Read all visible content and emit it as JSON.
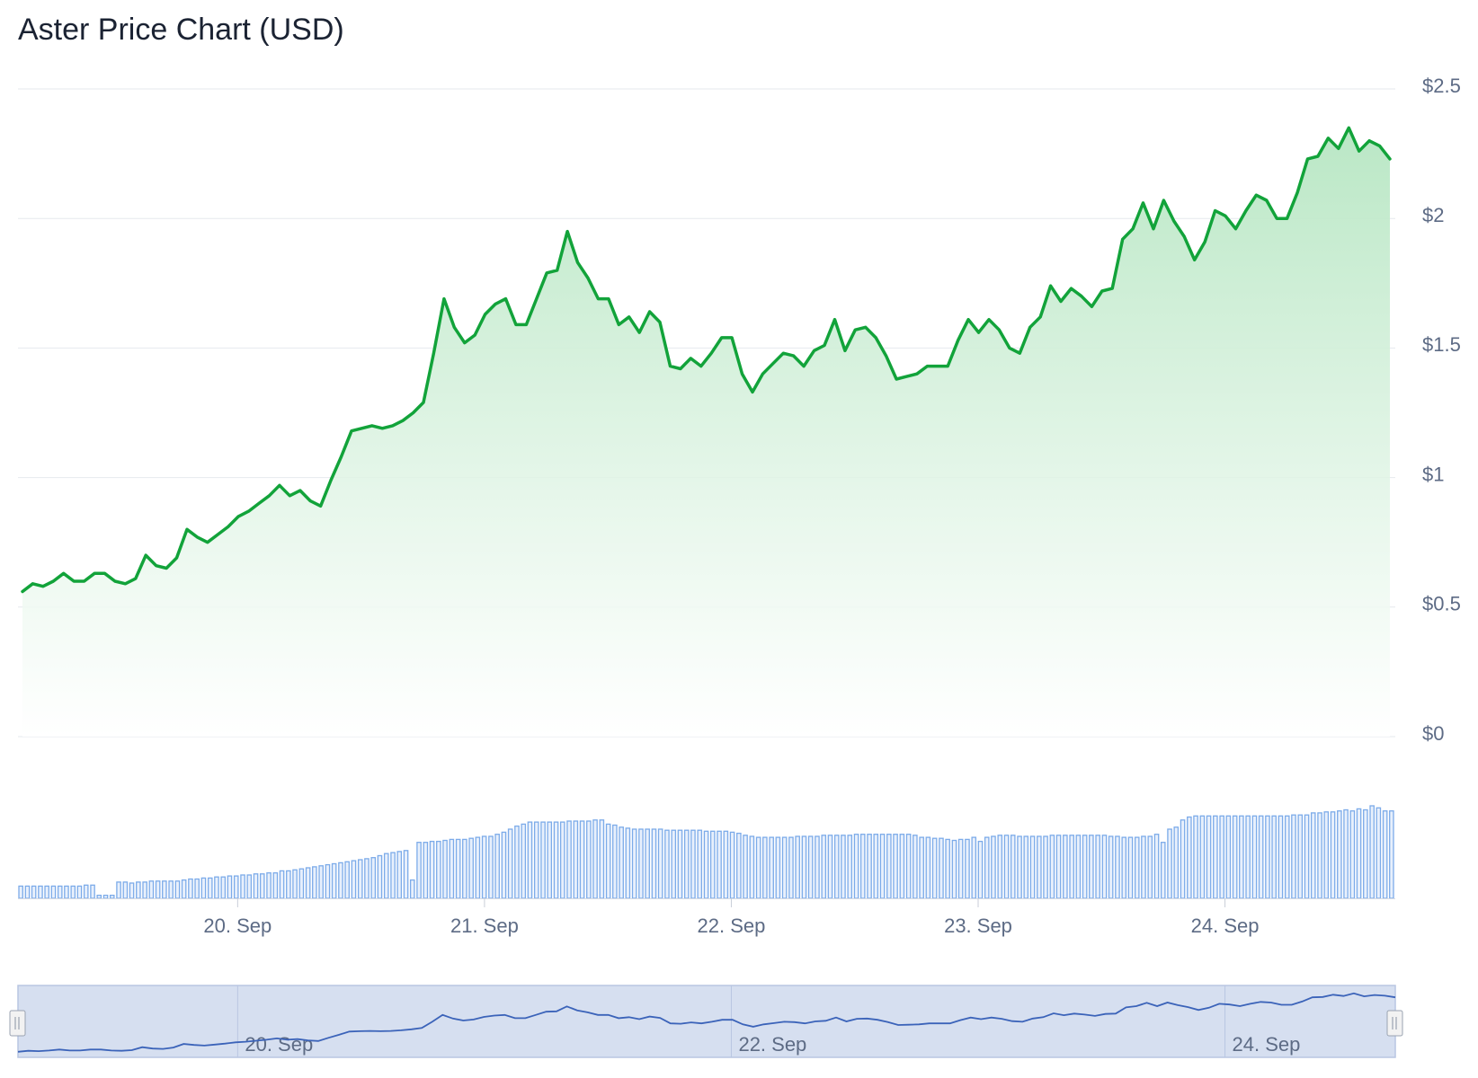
{
  "title": "Aster Price Chart (USD)",
  "colors": {
    "price_line": "#12a33a",
    "area_top": "#b6e6c2",
    "area_bottom": "#ffffff",
    "volume_bar": "#7cabe9",
    "grid": "#e6e9ee",
    "navigator_fill": "#d6dff0",
    "navigator_line": "#3b63b9"
  },
  "chart_data": {
    "type": "area",
    "title": "Aster Price Chart (USD)",
    "xlabel": "",
    "ylabel": "",
    "ylim": [
      0,
      2.5
    ],
    "y_ticks": [
      "$0",
      "$0.5",
      "$1",
      "$1.5",
      "$2",
      "$2.5"
    ],
    "x_tick_labels": [
      "20. Sep",
      "21. Sep",
      "22. Sep",
      "23. Sep",
      "24. Sep"
    ],
    "x_tick_days": [
      1,
      2,
      3,
      4,
      5
    ],
    "x_start_day": 0.11,
    "x_end_day": 5.69,
    "grid": true,
    "legend": "none",
    "series": [
      {
        "kind": "price",
        "x_days": "evenly spaced from 19 Sep ~02:40 to 24 Sep ~16:30",
        "values": [
          0.56,
          0.59,
          0.58,
          0.6,
          0.63,
          0.6,
          0.6,
          0.63,
          0.63,
          0.6,
          0.59,
          0.61,
          0.7,
          0.66,
          0.65,
          0.69,
          0.8,
          0.77,
          0.75,
          0.78,
          0.81,
          0.85,
          0.87,
          0.9,
          0.93,
          0.97,
          0.93,
          0.95,
          0.91,
          0.89,
          0.99,
          1.08,
          1.18,
          1.19,
          1.2,
          1.19,
          1.2,
          1.22,
          1.25,
          1.29,
          1.48,
          1.69,
          1.58,
          1.52,
          1.55,
          1.63,
          1.67,
          1.69,
          1.59,
          1.59,
          1.69,
          1.79,
          1.8,
          1.95,
          1.83,
          1.77,
          1.69,
          1.69,
          1.59,
          1.62,
          1.56,
          1.64,
          1.6,
          1.43,
          1.42,
          1.46,
          1.43,
          1.48,
          1.54,
          1.54,
          1.4,
          1.33,
          1.4,
          1.44,
          1.48,
          1.47,
          1.43,
          1.49,
          1.51,
          1.61,
          1.49,
          1.57,
          1.58,
          1.54,
          1.47,
          1.38,
          1.39,
          1.4,
          1.43,
          1.43,
          1.43,
          1.53,
          1.61,
          1.56,
          1.61,
          1.57,
          1.5,
          1.48,
          1.58,
          1.62,
          1.74,
          1.68,
          1.73,
          1.7,
          1.66,
          1.72,
          1.73,
          1.92,
          1.96,
          2.06,
          1.96,
          2.07,
          1.99,
          1.93,
          1.84,
          1.91,
          2.03,
          2.01,
          1.96,
          2.03,
          2.09,
          2.07,
          2.0,
          2.0,
          2.1,
          2.23,
          2.24,
          2.31,
          2.27,
          2.35,
          2.26,
          2.3,
          2.28,
          2.23
        ]
      },
      {
        "kind": "volume",
        "values": [
          12,
          12,
          12,
          12,
          12,
          12,
          12,
          12,
          12,
          12,
          13,
          13,
          3,
          3,
          3,
          16,
          16,
          15,
          16,
          16,
          17,
          17,
          17,
          17,
          17,
          18,
          19,
          19,
          20,
          20,
          21,
          21,
          22,
          22,
          23,
          23,
          24,
          24,
          25,
          25,
          27,
          27,
          28,
          29,
          30,
          31,
          32,
          33,
          34,
          35,
          36,
          37,
          38,
          39,
          40,
          42,
          44,
          45,
          46,
          47,
          18,
          55,
          55,
          56,
          56,
          57,
          58,
          58,
          58,
          59,
          60,
          61,
          61,
          63,
          65,
          68,
          71,
          73,
          75,
          75,
          75,
          75,
          75,
          75,
          76,
          76,
          76,
          76,
          77,
          77,
          73,
          72,
          70,
          69,
          68,
          68,
          68,
          68,
          68,
          67,
          67,
          67,
          67,
          67,
          67,
          66,
          66,
          66,
          66,
          65,
          64,
          62,
          61,
          60,
          60,
          60,
          60,
          60,
          60,
          61,
          61,
          61,
          61,
          62,
          62,
          62,
          62,
          62,
          63,
          63,
          63,
          63,
          63,
          63,
          63,
          63,
          63,
          62,
          60,
          60,
          59,
          59,
          58,
          57,
          58,
          58,
          60,
          56,
          60,
          61,
          62,
          62,
          62,
          61,
          61,
          61,
          61,
          61,
          62,
          62,
          62,
          62,
          62,
          62,
          62,
          62,
          62,
          61,
          61,
          60,
          60,
          60,
          61,
          61,
          63,
          55,
          68,
          70,
          77,
          80,
          81,
          81,
          81,
          81,
          81,
          81,
          81,
          81,
          81,
          81,
          81,
          81,
          81,
          81,
          81,
          82,
          82,
          82,
          84,
          84,
          85,
          85,
          86,
          87,
          86,
          88,
          87,
          91,
          89,
          86,
          86
        ]
      }
    ],
    "navigator_tick_labels": [
      "20. Sep",
      "22. Sep",
      "24. Sep"
    ],
    "navigator_tick_days": [
      1,
      3,
      5
    ]
  }
}
